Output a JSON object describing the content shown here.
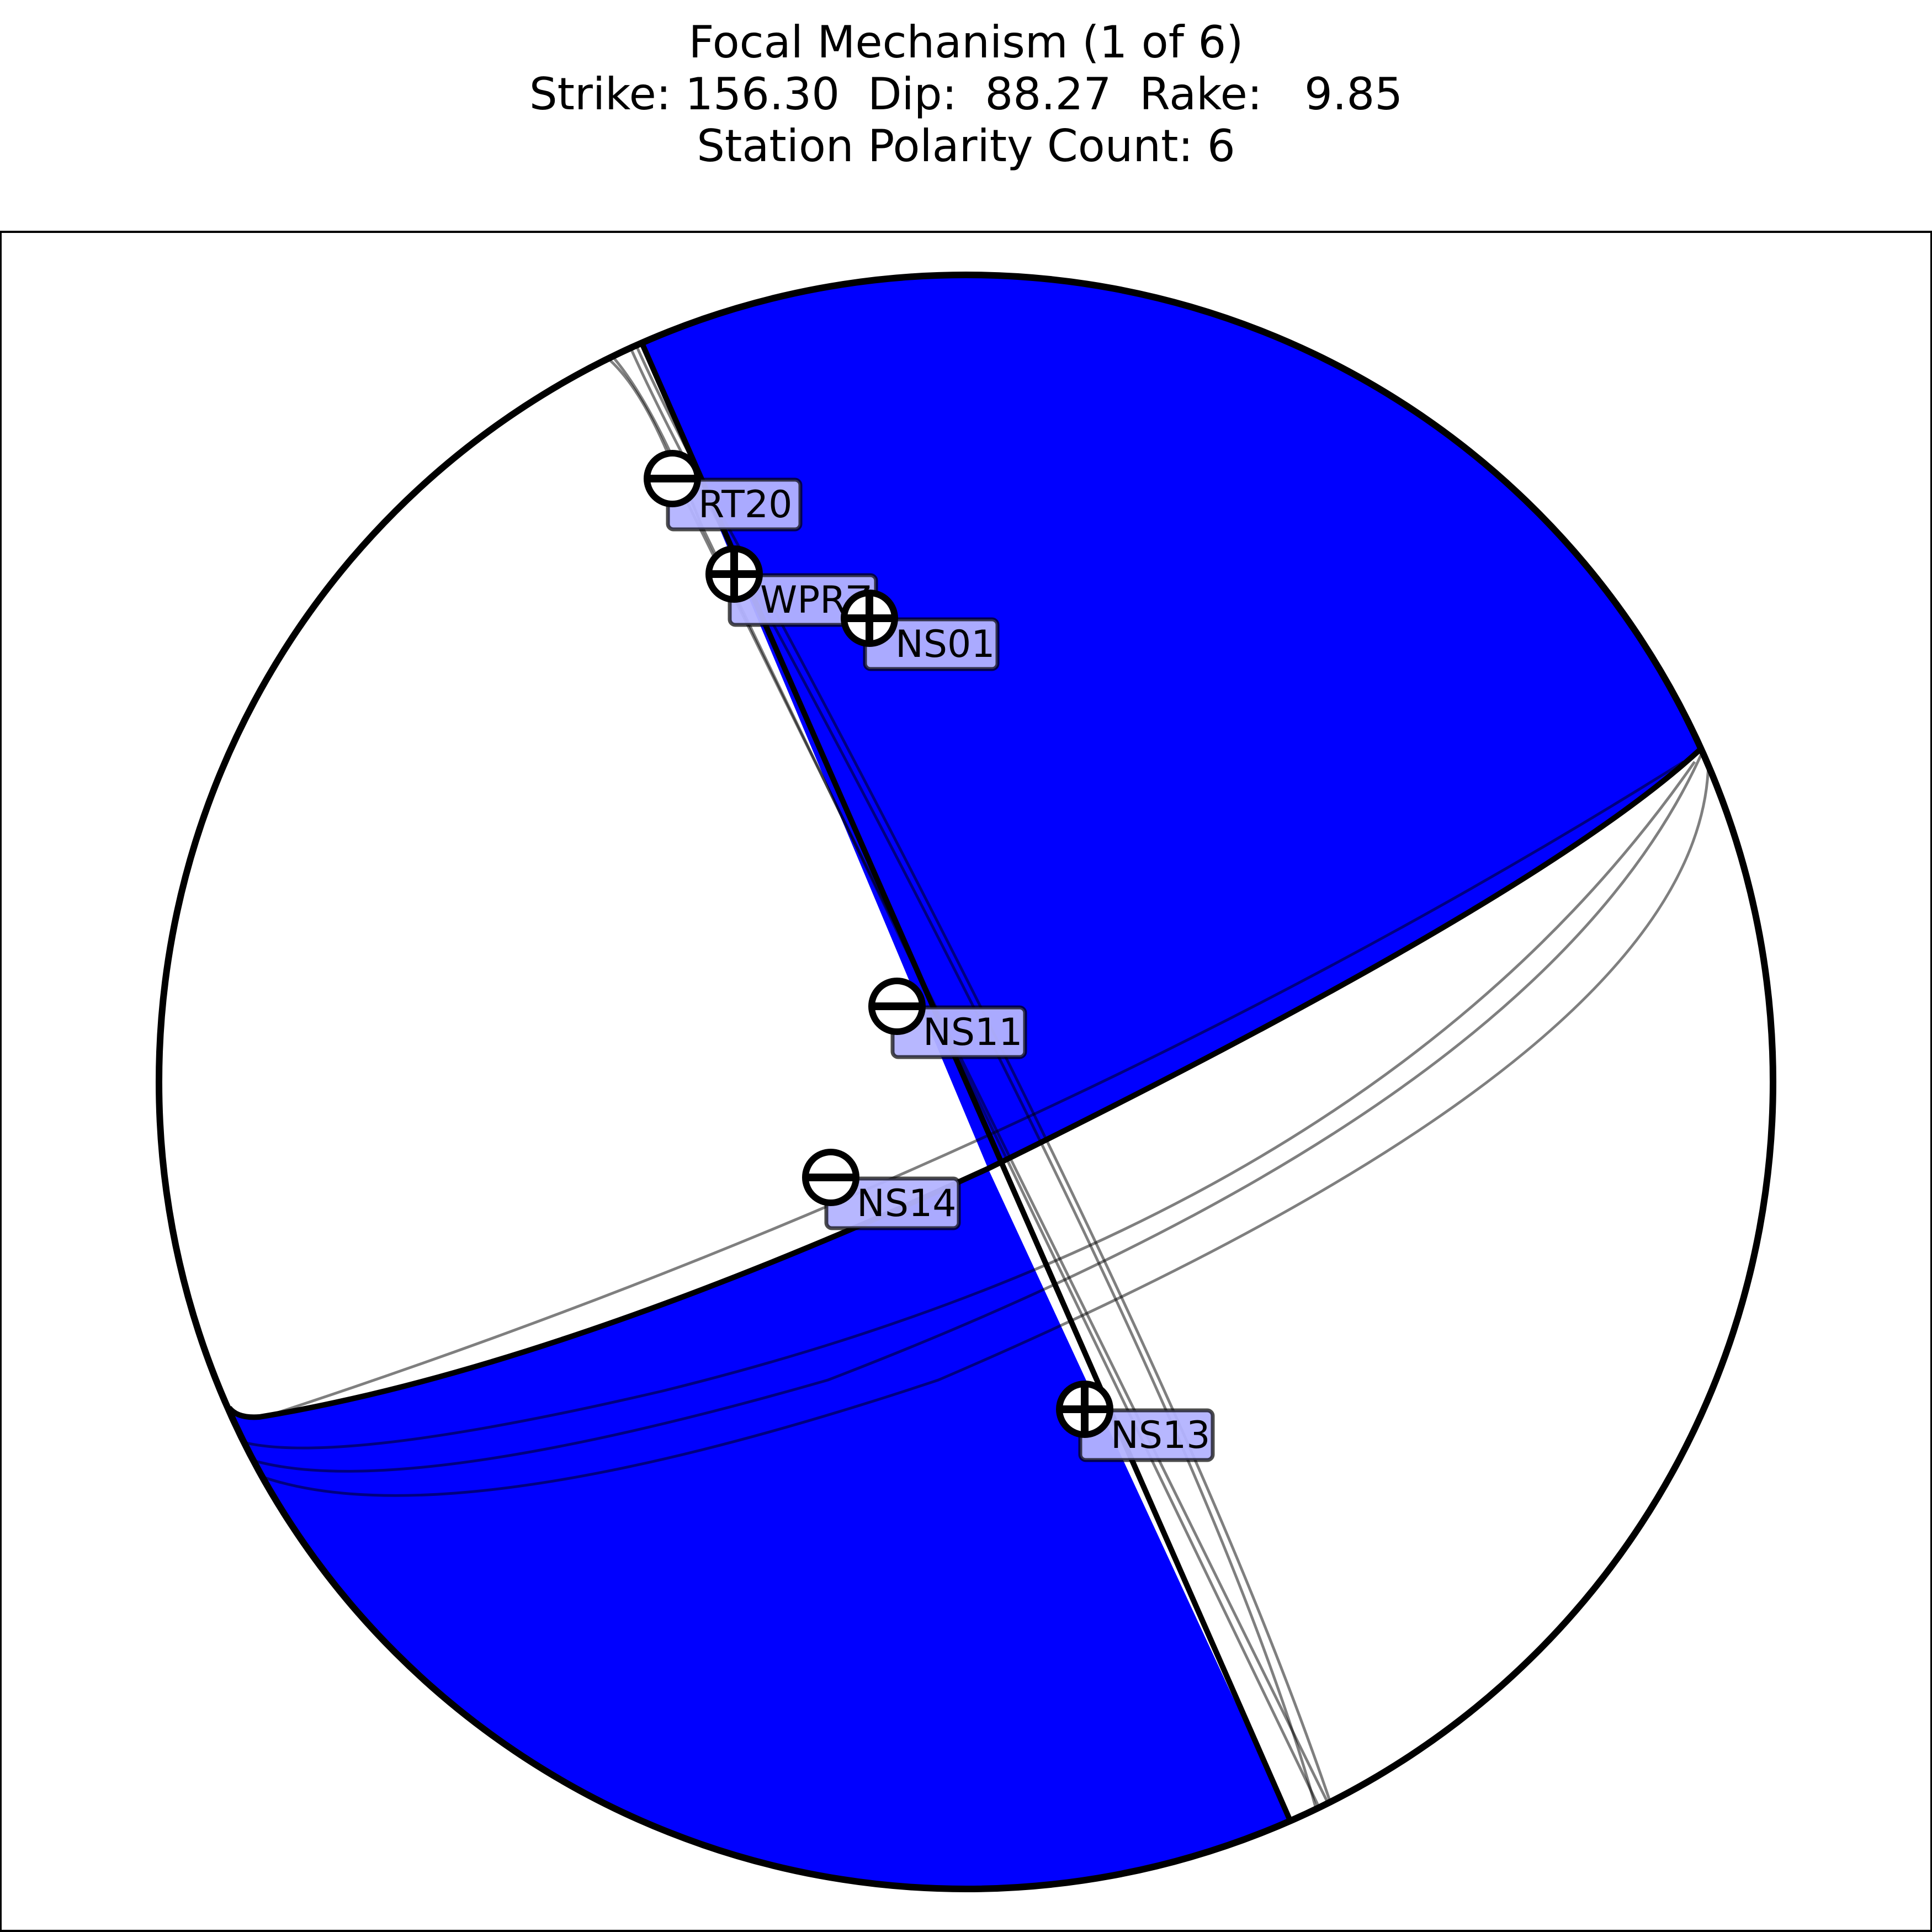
{
  "title": {
    "line1": "Focal Mechanism (1 of 6)",
    "line2": "Strike: 156.30  Dip:  88.27  Rake:   9.85",
    "line3": "Station Polarity Count: 6"
  },
  "colors": {
    "compression_fill": "#0000ff",
    "dilatation_fill": "#ffffff",
    "label_box_fill": "#b3b3ff",
    "outline": "#000000",
    "alt_planes": "#777777"
  },
  "stations": [
    {
      "id": "RT20",
      "label": "RT20",
      "polarity": "minus"
    },
    {
      "id": "WPRZ",
      "label": "WPRZ",
      "polarity": "plus"
    },
    {
      "id": "NS01",
      "label": "NS01",
      "polarity": "plus"
    },
    {
      "id": "NS11",
      "label": "NS11",
      "polarity": "minus"
    },
    {
      "id": "NS14",
      "label": "NS14",
      "polarity": "minus"
    },
    {
      "id": "NS13",
      "label": "NS13",
      "polarity": "plus"
    }
  ]
}
